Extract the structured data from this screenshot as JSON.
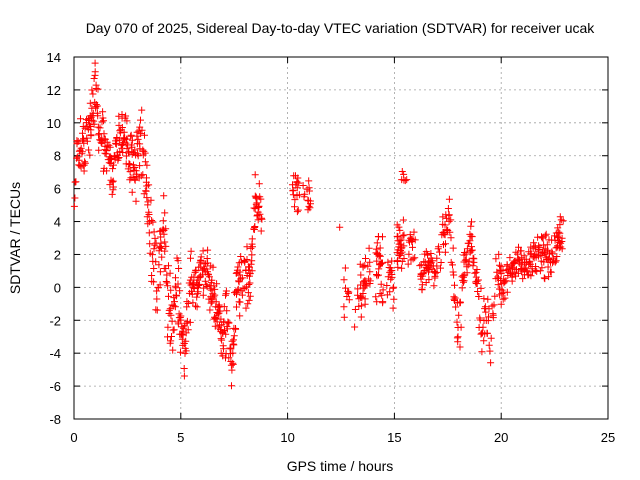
{
  "chart_data": {
    "type": "scatter",
    "title": "Day 070 of 2025, Sidereal Day-to-day VTEC variation (SDTVAR) for receiver ucak",
    "xlabel": "GPS time / hours",
    "ylabel": "SDTVAR / TECUs",
    "xlim": [
      0,
      25
    ],
    "ylim": [
      -8,
      14
    ],
    "x_ticks": [
      0,
      5,
      10,
      15,
      20,
      25
    ],
    "y_ticks": [
      -8,
      -6,
      -4,
      -2,
      0,
      2,
      4,
      6,
      8,
      10,
      12,
      14
    ],
    "grid": true,
    "marker": "+",
    "series": [
      {
        "name": "SDTVAR",
        "color": "#ff0000",
        "trend": [
          [
            0.0,
            5.0
          ],
          [
            0.2,
            9.0
          ],
          [
            0.5,
            8.5
          ],
          [
            0.8,
            10.0
          ],
          [
            1.0,
            12.0
          ],
          [
            1.2,
            9.5
          ],
          [
            1.5,
            8.5
          ],
          [
            1.8,
            7.0
          ],
          [
            2.2,
            9.5
          ],
          [
            2.6,
            8.5
          ],
          [
            2.9,
            7.5
          ],
          [
            3.2,
            9.5
          ],
          [
            3.4,
            6.0
          ],
          [
            3.6,
            3.0
          ],
          [
            3.9,
            0.0
          ],
          [
            4.2,
            4.0
          ],
          [
            4.4,
            -1.0
          ],
          [
            4.6,
            -2.5
          ],
          [
            4.8,
            1.0
          ],
          [
            5.0,
            -3.0
          ],
          [
            5.2,
            -3.5
          ],
          [
            5.5,
            0.5
          ],
          [
            5.8,
            0.0
          ],
          [
            6.2,
            1.0
          ],
          [
            6.6,
            -0.5
          ],
          [
            6.9,
            -3.0
          ],
          [
            7.2,
            -2.0
          ],
          [
            7.4,
            -5.0
          ],
          [
            7.6,
            -0.5
          ],
          [
            7.9,
            1.5
          ],
          [
            8.2,
            0.0
          ],
          [
            8.5,
            5.5
          ],
          [
            8.8,
            4.5
          ]
        ],
        "spread": [
          [
            0.0,
            2.0
          ],
          [
            2.0,
            2.0
          ],
          [
            3.4,
            3.0
          ],
          [
            5.0,
            2.5
          ],
          [
            6.5,
            2.0
          ],
          [
            8.0,
            2.5
          ],
          [
            8.8,
            1.5
          ]
        ],
        "clusters": [
          {
            "x": 10.4,
            "y": 6.0,
            "spread": 1.5,
            "count": 18
          },
          {
            "x": 10.9,
            "y": 5.5,
            "spread": 1.8,
            "count": 14
          },
          {
            "x": 12.4,
            "y": 3.6,
            "spread": 0.2,
            "count": 1
          },
          {
            "x": 12.8,
            "y": -0.5,
            "spread": 1.8,
            "count": 10
          },
          {
            "x": 13.3,
            "y": -0.5,
            "spread": 2.0,
            "count": 14
          },
          {
            "x": 13.7,
            "y": 0.5,
            "spread": 2.2,
            "count": 22
          },
          {
            "x": 14.3,
            "y": 1.0,
            "spread": 2.5,
            "count": 30
          },
          {
            "x": 14.8,
            "y": 0.5,
            "spread": 1.8,
            "count": 18
          },
          {
            "x": 15.3,
            "y": 2.5,
            "spread": 2.0,
            "count": 30
          },
          {
            "x": 15.5,
            "y": 6.5,
            "spread": 0.6,
            "count": 6
          },
          {
            "x": 15.8,
            "y": 2.5,
            "spread": 1.2,
            "count": 16
          }
        ],
        "trend2": [
          [
            16.2,
            0.5
          ],
          [
            16.6,
            1.5
          ],
          [
            17.0,
            1.0
          ],
          [
            17.3,
            3.5
          ],
          [
            17.6,
            4.0
          ],
          [
            17.8,
            0.0
          ],
          [
            18.0,
            -2.5
          ],
          [
            18.3,
            1.5
          ],
          [
            18.6,
            2.5
          ],
          [
            18.9,
            0.0
          ],
          [
            19.1,
            -2.5
          ],
          [
            19.3,
            -1.5
          ],
          [
            19.5,
            -3.5
          ],
          [
            19.8,
            1.0
          ],
          [
            20.1,
            0.0
          ],
          [
            20.4,
            1.0
          ],
          [
            20.7,
            1.5
          ],
          [
            21.0,
            1.5
          ],
          [
            21.4,
            1.5
          ],
          [
            21.8,
            2.0
          ],
          [
            22.1,
            2.0
          ],
          [
            22.4,
            1.5
          ],
          [
            22.7,
            3.0
          ],
          [
            22.9,
            3.5
          ]
        ],
        "spread2": [
          [
            16.2,
            1.2
          ],
          [
            18.0,
            2.0
          ],
          [
            19.5,
            2.0
          ],
          [
            20.5,
            1.2
          ],
          [
            22.0,
            1.5
          ],
          [
            22.9,
            1.5
          ]
        ]
      }
    ]
  }
}
